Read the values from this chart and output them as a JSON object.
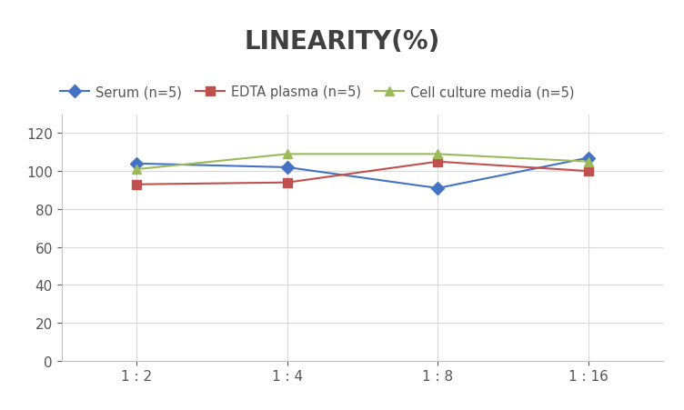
{
  "title": "LINEARITY(%)",
  "x_labels": [
    "1 : 2",
    "1 : 4",
    "1 : 8",
    "1 : 16"
  ],
  "x_positions": [
    0,
    1,
    2,
    3
  ],
  "series": [
    {
      "label": "Serum (n=5)",
      "color": "#4472C4",
      "marker": "D",
      "values": [
        104,
        102,
        91,
        107
      ]
    },
    {
      "label": "EDTA plasma (n=5)",
      "color": "#C0504D",
      "marker": "s",
      "values": [
        93,
        94,
        105,
        100
      ]
    },
    {
      "label": "Cell culture media (n=5)",
      "color": "#9BBB59",
      "marker": "^",
      "values": [
        101,
        109,
        109,
        105
      ]
    }
  ],
  "ylim": [
    0,
    130
  ],
  "yticks": [
    0,
    20,
    40,
    60,
    80,
    100,
    120
  ],
  "title_fontsize": 20,
  "title_color": "#404040",
  "legend_fontsize": 10.5,
  "tick_fontsize": 11,
  "tick_color": "#555555",
  "background_color": "#ffffff",
  "grid_color": "#d8d8d8",
  "spine_color": "#c0c0c0"
}
